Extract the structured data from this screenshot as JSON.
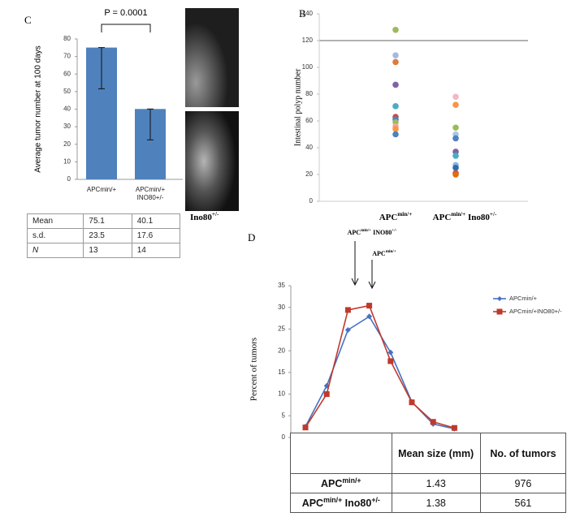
{
  "chart_data": [
    {
      "type": "bar",
      "label": "C",
      "annotation": "P = 0.0001",
      "ylabel": "Average tumor number at 100 days",
      "categories": [
        "APCmin/+",
        "APCmin/+ INO80+/-"
      ],
      "values": [
        75.1,
        40.1
      ],
      "errors": [
        23.5,
        17.6
      ],
      "color": "#4f81bd",
      "ylim": [
        0,
        80
      ],
      "yticks": [
        0,
        10,
        20,
        30,
        40,
        50,
        60,
        70,
        80
      ]
    },
    {
      "type": "strip",
      "label": "B",
      "ylabel": "Intestinal polyp number",
      "categories": [
        [
          "APC",
          "min/+"
        ],
        [
          "APC",
          "min/+",
          " Ino80",
          "+/-"
        ]
      ],
      "values": [
        [
          128,
          109,
          104,
          87,
          71,
          63,
          61,
          59,
          56,
          54,
          50
        ],
        [
          78,
          72,
          55,
          50,
          47,
          37,
          34,
          27,
          25,
          21,
          20
        ]
      ],
      "colors": [
        [
          "#9bbb59",
          "#a5b9e0",
          "#e07b39",
          "#8064a2",
          "#4bacc6",
          "#c0504d",
          "#4f81bd",
          "#9bbb59",
          "#f2a5a0",
          "#f79646",
          "#4f81bd"
        ],
        [
          "#f2b8c6",
          "#f79646",
          "#9bbb59",
          "#a5c8e8",
          "#4f81bd",
          "#8064a2",
          "#4bacc6",
          "#8eb4e3",
          "#2c6fa8",
          "#c0504d",
          "#e46c0a"
        ]
      ],
      "ylim": [
        0,
        140
      ],
      "yticks": [
        0,
        20,
        40,
        60,
        80,
        100,
        120,
        140
      ],
      "reference_lines": [
        120
      ]
    },
    {
      "type": "line",
      "label": "D",
      "ylabel": "Percent of tumors",
      "annotations": [
        [
          "APC",
          "min/+",
          " INO80",
          "+/-"
        ],
        [
          "APC",
          "min/+"
        ]
      ],
      "categories": [
        null,
        null,
        null,
        null,
        null,
        null,
        null,
        null
      ],
      "series": [
        {
          "name": "APCmin/+",
          "color": "#4472c4",
          "marker": "diamond",
          "values": [
            2.5,
            11.9,
            24.8,
            27.9,
            19.6,
            8.2,
            3.1,
            2
          ]
        },
        {
          "name": "APCmin/+INO80+/-",
          "color": "#c0392b",
          "marker": "square",
          "values": [
            2.3,
            10,
            29.4,
            30.4,
            17.6,
            8.1,
            3.6,
            2.2
          ]
        }
      ],
      "ylim": [
        0,
        35
      ],
      "yticks": [
        0,
        5,
        10,
        15,
        20,
        25,
        30,
        35
      ],
      "legend": "upper right"
    }
  ],
  "images": {
    "caption": [
      "Ino80",
      "+/-"
    ]
  },
  "table_c": {
    "rows": [
      [
        "Mean",
        "75.1",
        "40.1"
      ],
      [
        "s.d.",
        "23.5",
        "17.6"
      ],
      [
        "N",
        "13",
        "14"
      ]
    ]
  },
  "table_d": {
    "header": [
      "Mean size (mm)",
      "No. of tumors"
    ],
    "rows": [
      {
        "label": [
          "APC",
          "min/+"
        ],
        "cells": [
          "1.43",
          "976"
        ]
      },
      {
        "label": [
          "APC",
          "min/+",
          " Ino80",
          "+/-"
        ],
        "cells": [
          "1.38",
          "561"
        ]
      }
    ]
  }
}
